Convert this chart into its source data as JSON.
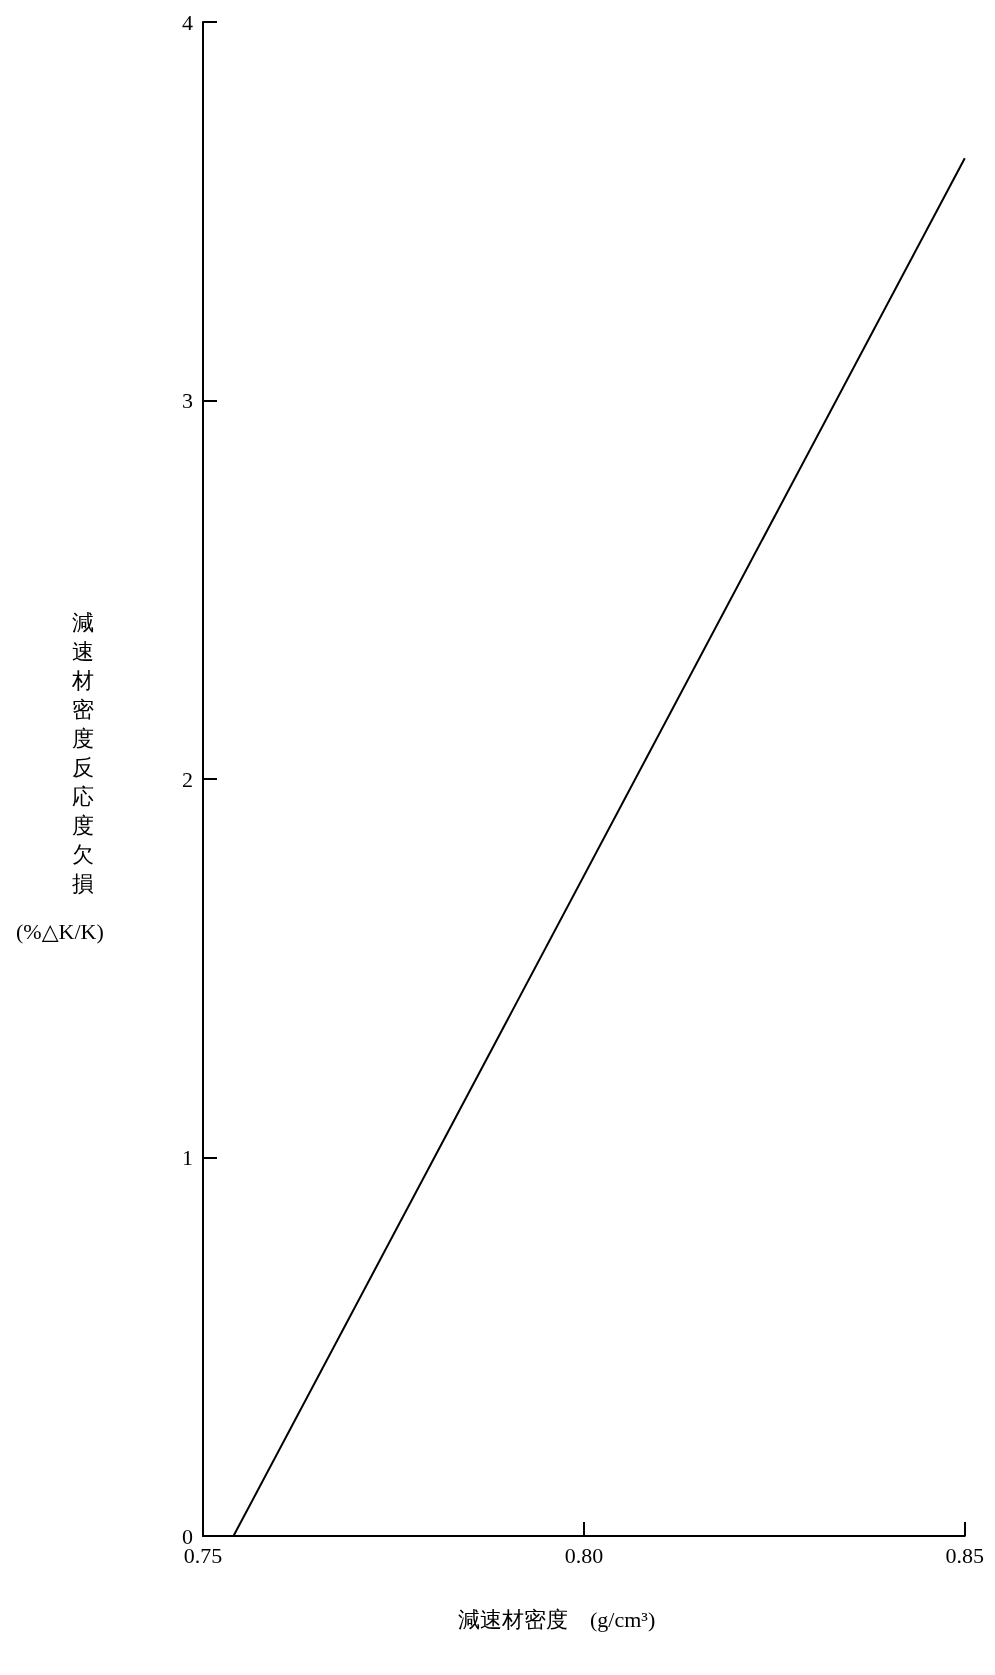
{
  "chart_data": {
    "type": "line",
    "xlabel": "減速材密度　(g/cm³)",
    "ylabel": "減速材密度反応度欠損\n(%△K/K)",
    "x": [
      0.754,
      0.85
    ],
    "series": [
      {
        "color": "#000000",
        "values": [
          0,
          3.64
        ]
      }
    ],
    "xlim": [
      0.75,
      0.85
    ],
    "xticks": [
      0.75,
      {
        "value": 0.8,
        "label": "0.80"
      },
      0.85
    ],
    "ylim": [
      0,
      4
    ],
    "yticks": [
      0,
      1,
      2,
      3,
      4
    ],
    "grid": false,
    "marker": "none",
    "line_style": "solid"
  }
}
